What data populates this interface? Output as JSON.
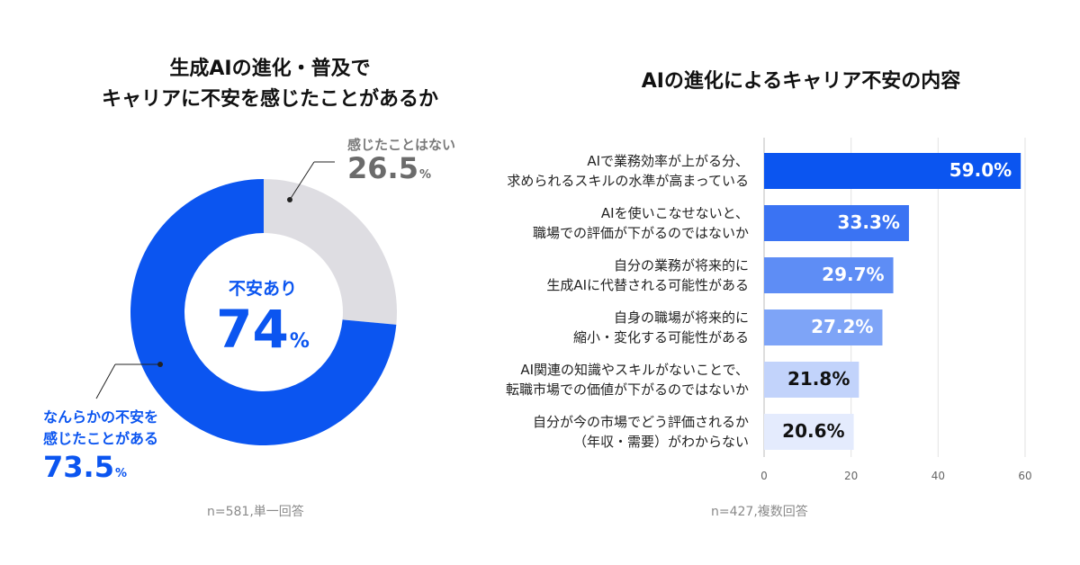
{
  "left": {
    "title_line1": "生成AIの進化・普及で",
    "title_line2": "キャリアに不安を感じたことがあるか",
    "no_label": "感じたことはない",
    "no_value": "26.5",
    "yes_label_line1": "なんらかの不安を",
    "yes_label_line2": "感じたことがある",
    "yes_value": "73.5",
    "percent_unit": "%",
    "center_label": "不安あり",
    "center_value": "74",
    "note": "n=581,単一回答"
  },
  "right": {
    "title": "AIの進化によるキャリア不安の内容",
    "note": "n=427,複数回答"
  },
  "chart_data": [
    {
      "type": "pie",
      "categories": [
        "なんらかの不安を感じたことがある",
        "感じたことはない"
      ],
      "values": [
        73.5,
        26.5
      ],
      "colors": [
        "#0b55f0",
        "#dedde2"
      ]
    },
    {
      "type": "bar",
      "orientation": "horizontal",
      "categories": [
        [
          "AIで業務効率が上がる分、",
          "求められるスキルの水準が高まっている"
        ],
        [
          "AIを使いこなせないと、",
          "職場での評価が下がるのではないか"
        ],
        [
          "自分の業務が将来的に",
          "生成AIに代替される可能性がある"
        ],
        [
          "自身の職場が将来的に",
          "縮小・変化する可能性がある"
        ],
        [
          "AI関連の知識やスキルがないことで、",
          "転職市場での価値が下がるのではないか"
        ],
        [
          "自分が今の市場でどう評価されるか",
          "（年収・需要）がわからない"
        ]
      ],
      "values": [
        59.0,
        33.3,
        29.7,
        27.2,
        21.8,
        20.6
      ],
      "value_labels": [
        "59.0%",
        "33.3%",
        "29.7%",
        "27.2%",
        "21.8%",
        "20.6%"
      ],
      "xlim": [
        0,
        60
      ],
      "xticks": [
        "0",
        "20",
        "40",
        "60"
      ],
      "colors": [
        "#0b55f0",
        "#3a73f3",
        "#5e8df5",
        "#7ea4f7",
        "#c2d3fb",
        "#e4ebfd"
      ],
      "label_colors": [
        "#ffffff",
        "#ffffff",
        "#ffffff",
        "#ffffff",
        "#111111",
        "#111111"
      ],
      "grid": true
    }
  ]
}
